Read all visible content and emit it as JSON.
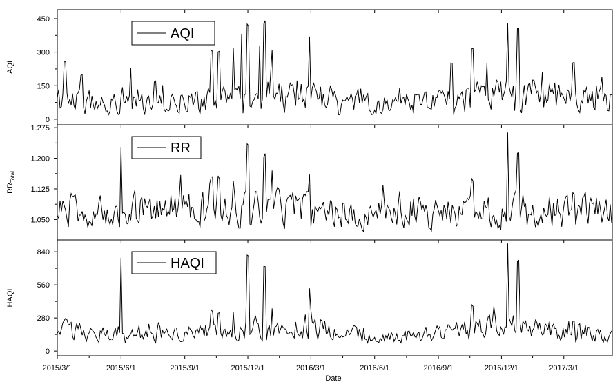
{
  "chart_data": {
    "type": "line",
    "xlabel": "Date",
    "x_ticks": [
      "2015/3/1",
      "2015/6/1",
      "2015/9/1",
      "2015/12/1",
      "2016/3/1",
      "2016/6/1",
      "2016/9/1",
      "2016/12/1",
      "2017/3/1"
    ],
    "x_tick_dates": [
      "2015-03-01",
      "2015-06-01",
      "2015-09-01",
      "2015-12-01",
      "2016-03-01",
      "2016-06-01",
      "2016-09-01",
      "2016-12-01",
      "2017-03-01"
    ],
    "x_range": [
      "2015-03-01",
      "2017-05-10"
    ],
    "panels": [
      {
        "key": "aqi",
        "ylabel": "AQI",
        "ylabel_sub": "",
        "legend": "AQI",
        "ylim": [
          -25,
          490
        ],
        "yticks": [
          0,
          150,
          300,
          450
        ],
        "ytick_labels": [
          "0",
          "150",
          "300",
          "450"
        ],
        "base": 88,
        "noise": 55,
        "floor": 20,
        "points": [
          [
            "2015-03-01",
            95
          ],
          [
            "2015-03-12",
            280
          ],
          [
            "2015-04-05",
            220
          ],
          [
            "2015-06-15",
            230
          ],
          [
            "2015-07-20",
            180
          ],
          [
            "2015-10-10",
            345
          ],
          [
            "2015-10-20",
            350
          ],
          [
            "2015-11-10",
            320
          ],
          [
            "2015-11-22",
            380
          ],
          [
            "2015-12-01",
            480
          ],
          [
            "2015-12-05",
            60
          ],
          [
            "2015-12-18",
            330
          ],
          [
            "2015-12-25",
            480
          ],
          [
            "2016-01-05",
            310
          ],
          [
            "2016-02-28",
            370
          ],
          [
            "2016-09-20",
            290
          ],
          [
            "2016-10-20",
            350
          ],
          [
            "2016-11-10",
            250
          ],
          [
            "2016-12-10",
            430
          ],
          [
            "2016-12-18",
            150
          ],
          [
            "2016-12-25",
            470
          ],
          [
            "2017-03-15",
            270
          ],
          [
            "2017-04-25",
            190
          ]
        ]
      },
      {
        "key": "rr",
        "ylabel": "RR",
        "ylabel_sub": "Total",
        "legend": "RR",
        "ylim": [
          1.0,
          1.282
        ],
        "yticks": [
          1.05,
          1.125,
          1.2,
          1.275
        ],
        "ytick_labels": [
          "1.050",
          "1.125",
          "1.200",
          "1.275"
        ],
        "base": 1.072,
        "noise": 0.032,
        "floor": 1.02,
        "points": [
          [
            "2015-03-01",
            1.06
          ],
          [
            "2015-06-01",
            1.228
          ],
          [
            "2015-06-04",
            1.07
          ],
          [
            "2015-10-10",
            1.17
          ],
          [
            "2015-10-20",
            1.165
          ],
          [
            "2015-11-10",
            1.145
          ],
          [
            "2015-12-01",
            1.265
          ],
          [
            "2015-12-05",
            1.04
          ],
          [
            "2015-12-25",
            1.23
          ],
          [
            "2016-01-05",
            1.17
          ],
          [
            "2016-02-28",
            1.16
          ],
          [
            "2016-10-20",
            1.16
          ],
          [
            "2016-12-10",
            1.263
          ],
          [
            "2016-12-18",
            1.1
          ],
          [
            "2016-12-25",
            1.24
          ],
          [
            "2017-03-15",
            1.12
          ]
        ]
      },
      {
        "key": "haqi",
        "ylabel": "HAQI",
        "ylabel_sub": "",
        "legend": "HAQI",
        "ylim": [
          -40,
          940
        ],
        "yticks": [
          0,
          280,
          560,
          840
        ],
        "ytick_labels": [
          "0",
          "280",
          "560",
          "840"
        ],
        "base": 165,
        "noise": 70,
        "floor": 70,
        "points": [
          [
            "2015-03-01",
            150
          ],
          [
            "2015-06-01",
            790
          ],
          [
            "2015-06-04",
            160
          ],
          [
            "2015-10-10",
            370
          ],
          [
            "2015-10-20",
            360
          ],
          [
            "2015-11-10",
            330
          ],
          [
            "2015-12-01",
            920
          ],
          [
            "2015-12-05",
            140
          ],
          [
            "2015-12-25",
            820
          ],
          [
            "2016-01-05",
            360
          ],
          [
            "2016-02-28",
            530
          ],
          [
            "2016-10-20",
            420
          ],
          [
            "2016-12-10",
            910
          ],
          [
            "2016-12-18",
            300
          ],
          [
            "2016-12-25",
            850
          ],
          [
            "2017-03-15",
            280
          ]
        ]
      }
    ]
  }
}
